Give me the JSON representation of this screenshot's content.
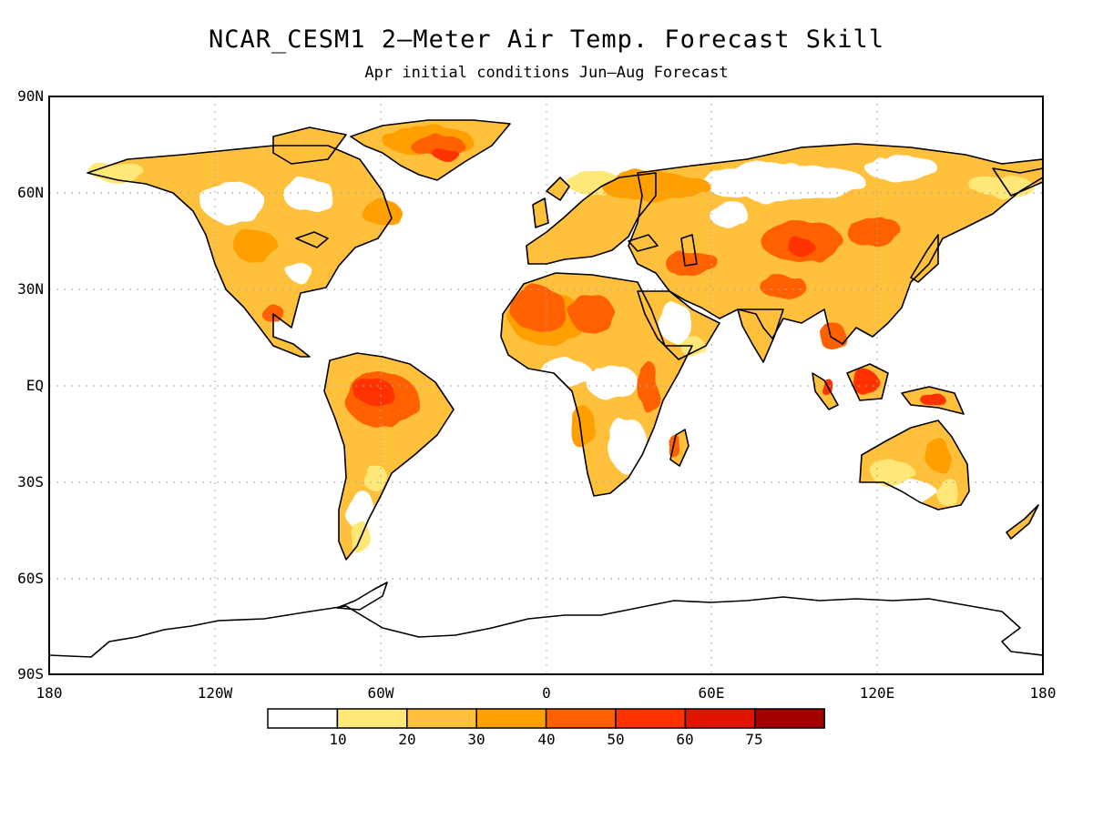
{
  "title": "NCAR_CESM1 2–Meter Air Temp. Forecast Skill",
  "subtitle": "Apr initial conditions   Jun–Aug Forecast",
  "lat_labels": [
    "90N",
    "60N",
    "30N",
    "EQ",
    "30S",
    "60S",
    "90S"
  ],
  "lon_labels": [
    "180",
    "120W",
    "60W",
    "0",
    "60E",
    "120E",
    "180"
  ],
  "colorbar": {
    "labels": [
      "10",
      "20",
      "30",
      "40",
      "50",
      "60",
      "75"
    ],
    "colors": [
      "#ffffff",
      "#ffe878",
      "#ffc03c",
      "#ffa000",
      "#ff6000",
      "#ff3200",
      "#e11400",
      "#a50000"
    ]
  },
  "colors": {
    "ocean": "#ffffff",
    "coast": "#000000",
    "grid": "#aaaaaa"
  }
}
